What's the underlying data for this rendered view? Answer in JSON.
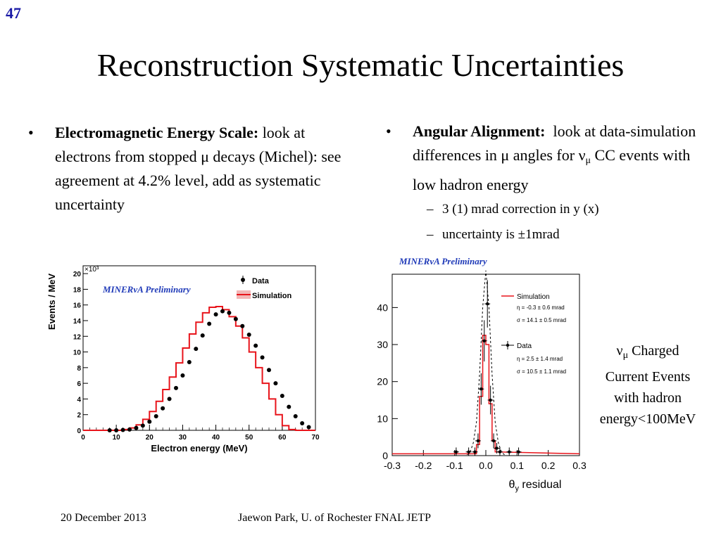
{
  "slide": {
    "number": "47",
    "title": "Reconstruction Systematic Uncertainties"
  },
  "left_bullet": {
    "marker": "•",
    "heading": "Electromagnetic Energy Scale:",
    "text": "look at electrons from stopped μ decays (Michel):  see agreement at 4.2% level, add as systematic uncertainty"
  },
  "right_bullet": {
    "marker": "•",
    "heading": "Angular Alignment:",
    "text_part1": "look at data-simulation differences in μ angles for ν",
    "nu_subscript": "μ",
    "text_part2": " CC events with low hadron energy",
    "subitems": [
      {
        "dash": "–",
        "text": "3 (1) mrad correction in  y (x)"
      },
      {
        "dash": "–",
        "text": "uncertainty is ±1mrad"
      }
    ]
  },
  "side_note": {
    "nu": "ν",
    "nu_subscript": "μ",
    "line1_rest": " Charged",
    "line2": "Current Events",
    "line3": "with hadron",
    "line4": "energy<100MeV"
  },
  "footer": {
    "date": "20 December 2013",
    "author": "Jaewon Park, U. of Rochester  FNAL JETP"
  },
  "colors": {
    "slide_number": "#1a1aa6",
    "preliminary": "#1f3ab8",
    "simulation": "#e8141b",
    "simulation_band": "#f2b6b6",
    "data": "#000000"
  },
  "chart_data": [
    {
      "type": "line",
      "preliminary_label": "MINERνA Preliminary",
      "xlabel": "Electron energy (MeV)",
      "ylabel": "Events / MeV",
      "y_multiplier": "×10³",
      "xlim": [
        0,
        70
      ],
      "ylim": [
        0,
        21
      ],
      "xticks": [
        0,
        10,
        20,
        30,
        40,
        50,
        60,
        70
      ],
      "yticks": [
        0,
        2,
        4,
        6,
        8,
        10,
        12,
        14,
        16,
        18,
        20
      ],
      "legend_position": "top-right",
      "series": [
        {
          "name": "Simulation",
          "style": "step",
          "bin_edges": [
            0,
            2,
            4,
            6,
            8,
            10,
            12,
            14,
            16,
            18,
            20,
            22,
            24,
            26,
            28,
            30,
            32,
            34,
            36,
            38,
            40,
            42,
            44,
            46,
            48,
            50,
            52,
            54,
            56,
            58,
            60,
            62,
            64,
            66,
            68,
            70
          ],
          "values": [
            0,
            0,
            0,
            0,
            0,
            0,
            0.1,
            0.3,
            0.7,
            1.4,
            2.4,
            3.7,
            5.2,
            6.8,
            8.6,
            10.5,
            12.3,
            13.8,
            15.0,
            15.7,
            15.8,
            15.4,
            14.5,
            13.3,
            11.8,
            10.0,
            8.0,
            6.0,
            4.0,
            2.0,
            0.6,
            0.1,
            0,
            0,
            0
          ]
        },
        {
          "name": "Data",
          "style": "markers",
          "x": [
            8,
            10,
            12,
            14,
            16,
            18,
            20,
            22,
            24,
            26,
            28,
            30,
            32,
            34,
            36,
            38,
            40,
            42,
            44,
            46,
            48,
            50,
            52,
            54,
            56,
            58,
            60,
            62,
            64,
            66,
            68
          ],
          "y": [
            0,
            0,
            0.05,
            0.1,
            0.3,
            0.6,
            1.1,
            1.8,
            2.8,
            4.0,
            5.4,
            7.0,
            8.7,
            10.4,
            12.1,
            13.6,
            14.8,
            15.2,
            15.0,
            14.2,
            13.3,
            12.2,
            10.8,
            9.3,
            7.7,
            6.0,
            4.4,
            3.0,
            1.8,
            0.9,
            0.4
          ]
        }
      ]
    },
    {
      "type": "line",
      "preliminary_label": "MINERνA Preliminary",
      "xlabel_symbol": "θ",
      "xlabel_subscript": "y",
      "xlabel_rest": " residual",
      "xlim": [
        -0.3,
        0.3
      ],
      "ylim": [
        0,
        49
      ],
      "xtick_labels": [
        "-0.3",
        "-0.2",
        "-0.1",
        "0.0",
        "0.1",
        "0.2",
        "0.3"
      ],
      "xticks": [
        -0.3,
        -0.2,
        -0.1,
        0.0,
        0.1,
        0.2,
        0.3
      ],
      "yticks": [
        0,
        10,
        20,
        30,
        40
      ],
      "legend_position": "top-right",
      "series": [
        {
          "name": "Simulation",
          "style": "step",
          "bin_edges": [
            -0.04,
            -0.03,
            -0.02,
            -0.01,
            0.0,
            0.01,
            0.02,
            0.03,
            0.04
          ],
          "values": [
            0.5,
            3,
            16,
            32.5,
            30,
            14,
            4,
            1
          ],
          "stats": [
            "η = -0.3 ± 0.6 mrad",
            "σ = 14.1 ± 0.5 mrad"
          ]
        },
        {
          "name": "Data",
          "style": "markers",
          "x": [
            -0.095,
            -0.055,
            -0.035,
            -0.025,
            -0.015,
            -0.005,
            0.005,
            0.015,
            0.025,
            0.035,
            0.045,
            0.075,
            0.105
          ],
          "y": [
            1,
            1,
            1,
            4,
            18,
            31,
            41,
            15,
            4,
            2,
            1,
            1,
            1
          ],
          "stats": [
            "η = 2.5 ± 1.4 mrad",
            "σ = 10.5 ± 1.1 mrad"
          ]
        },
        {
          "name": "",
          "style": "dashed-fit",
          "x": [
            -0.06,
            -0.05,
            -0.04,
            -0.03,
            -0.02,
            -0.01,
            0.0,
            0.01,
            0.02,
            0.03,
            0.04,
            0.05,
            0.06
          ],
          "y": [
            0.2,
            1,
            3.5,
            9,
            22,
            40,
            50,
            40,
            22,
            9,
            3.5,
            1,
            0.2
          ]
        }
      ]
    }
  ]
}
